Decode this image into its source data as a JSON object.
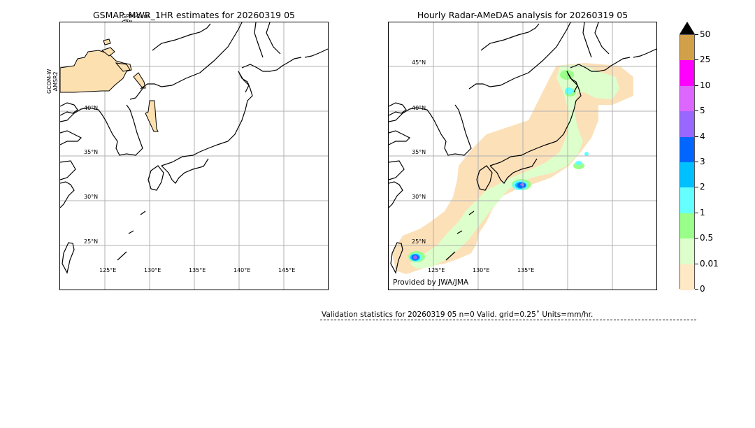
{
  "left_panel": {
    "title": "GSMAP_MWR_1HR estimates for 20260319 05",
    "overlay_sensor_top": "GPM-Core",
    "overlay_sensor_top2": "GMI",
    "overlay_sensor_side": "GCOM-W",
    "overlay_sensor_side2": "AMSR2",
    "lat_ticks": [
      "40°N",
      "35°N",
      "30°N",
      "25°N"
    ],
    "lon_ticks": [
      "125°E",
      "130°E",
      "135°E",
      "140°E",
      "145°E"
    ]
  },
  "right_panel": {
    "title": "Hourly Radar-AMeDAS analysis for 20260319 05",
    "lat_ticks": [
      "45°N",
      "40°N",
      "35°N",
      "30°N",
      "25°N"
    ],
    "lon_ticks": [
      "125°E",
      "130°E",
      "135°E"
    ],
    "credit": "Provided by JWA/JMA"
  },
  "colorbar": {
    "labels": [
      "50",
      "25",
      "10",
      "5",
      "4",
      "3",
      "2",
      "1",
      "0.5",
      "0.01",
      "0"
    ],
    "colors": [
      "#d2a048",
      "#ff00ff",
      "#dd66ff",
      "#9966ff",
      "#0066ff",
      "#00c0ff",
      "#66ffff",
      "#99ff88",
      "#ddffcc",
      "#ffe8c4"
    ],
    "extend": "max"
  },
  "validation": {
    "text": "Validation statistics for 20260319 05  n=0 Valid. grid=0.25˚ Units=mm/hr."
  },
  "colors": {
    "gsmap_fill": "#fce0b0",
    "land_outline": "#000000",
    "grid": "#b0b0b0"
  }
}
